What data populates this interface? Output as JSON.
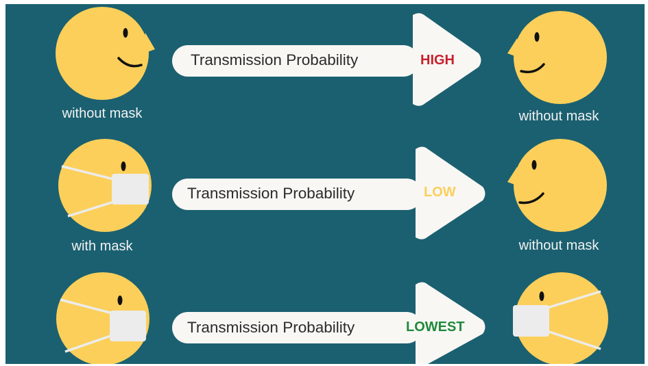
{
  "colors": {
    "background": "#1b6070",
    "face": "#fbcf5a",
    "mask": "#ececec",
    "arrow": "#f8f7f4"
  },
  "rows": [
    {
      "left_label": "without mask",
      "text": "Transmission Probability",
      "level": "HIGH",
      "level_color": "#c8202e",
      "right_label": "without mask"
    },
    {
      "left_label": "with mask",
      "text": "Transmission Probability",
      "level": "LOW",
      "level_color": "#fbcf5a",
      "right_label": "without mask"
    },
    {
      "text": "Transmission Probability",
      "level": "LOWEST",
      "level_color": "#1f8a3b"
    }
  ]
}
